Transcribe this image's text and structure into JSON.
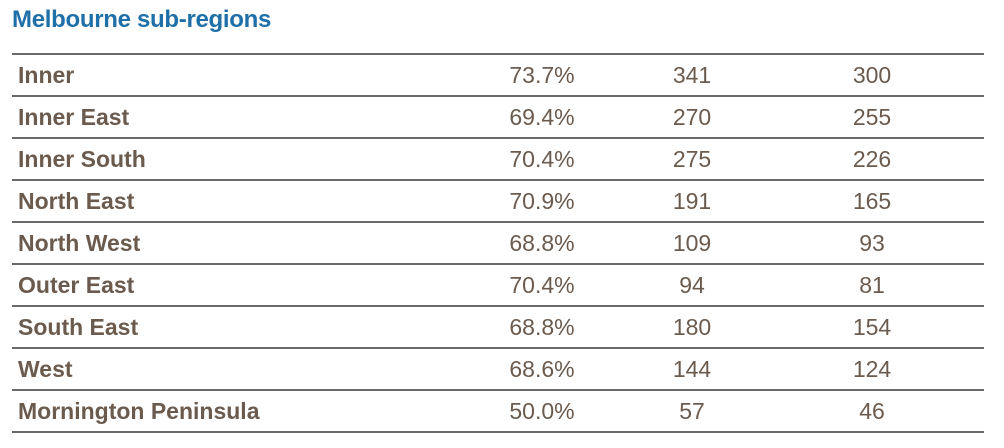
{
  "title": "Melbourne sub-regions",
  "rows": [
    {
      "region": "Inner",
      "pct": "73.7%",
      "v1": "341",
      "v2": "300"
    },
    {
      "region": "Inner East",
      "pct": "69.4%",
      "v1": "270",
      "v2": "255"
    },
    {
      "region": "Inner South",
      "pct": "70.4%",
      "v1": "275",
      "v2": "226"
    },
    {
      "region": "North East",
      "pct": "70.9%",
      "v1": "191",
      "v2": "165"
    },
    {
      "region": "North West",
      "pct": "68.8%",
      "v1": "109",
      "v2": "93"
    },
    {
      "region": "Outer East",
      "pct": "70.4%",
      "v1": "94",
      "v2": "81"
    },
    {
      "region": "South East",
      "pct": "68.8%",
      "v1": "180",
      "v2": "154"
    },
    {
      "region": "West",
      "pct": "68.6%",
      "v1": "144",
      "v2": "124"
    },
    {
      "region": "Mornington Peninsula",
      "pct": "50.0%",
      "v1": "57",
      "v2": "46"
    }
  ]
}
